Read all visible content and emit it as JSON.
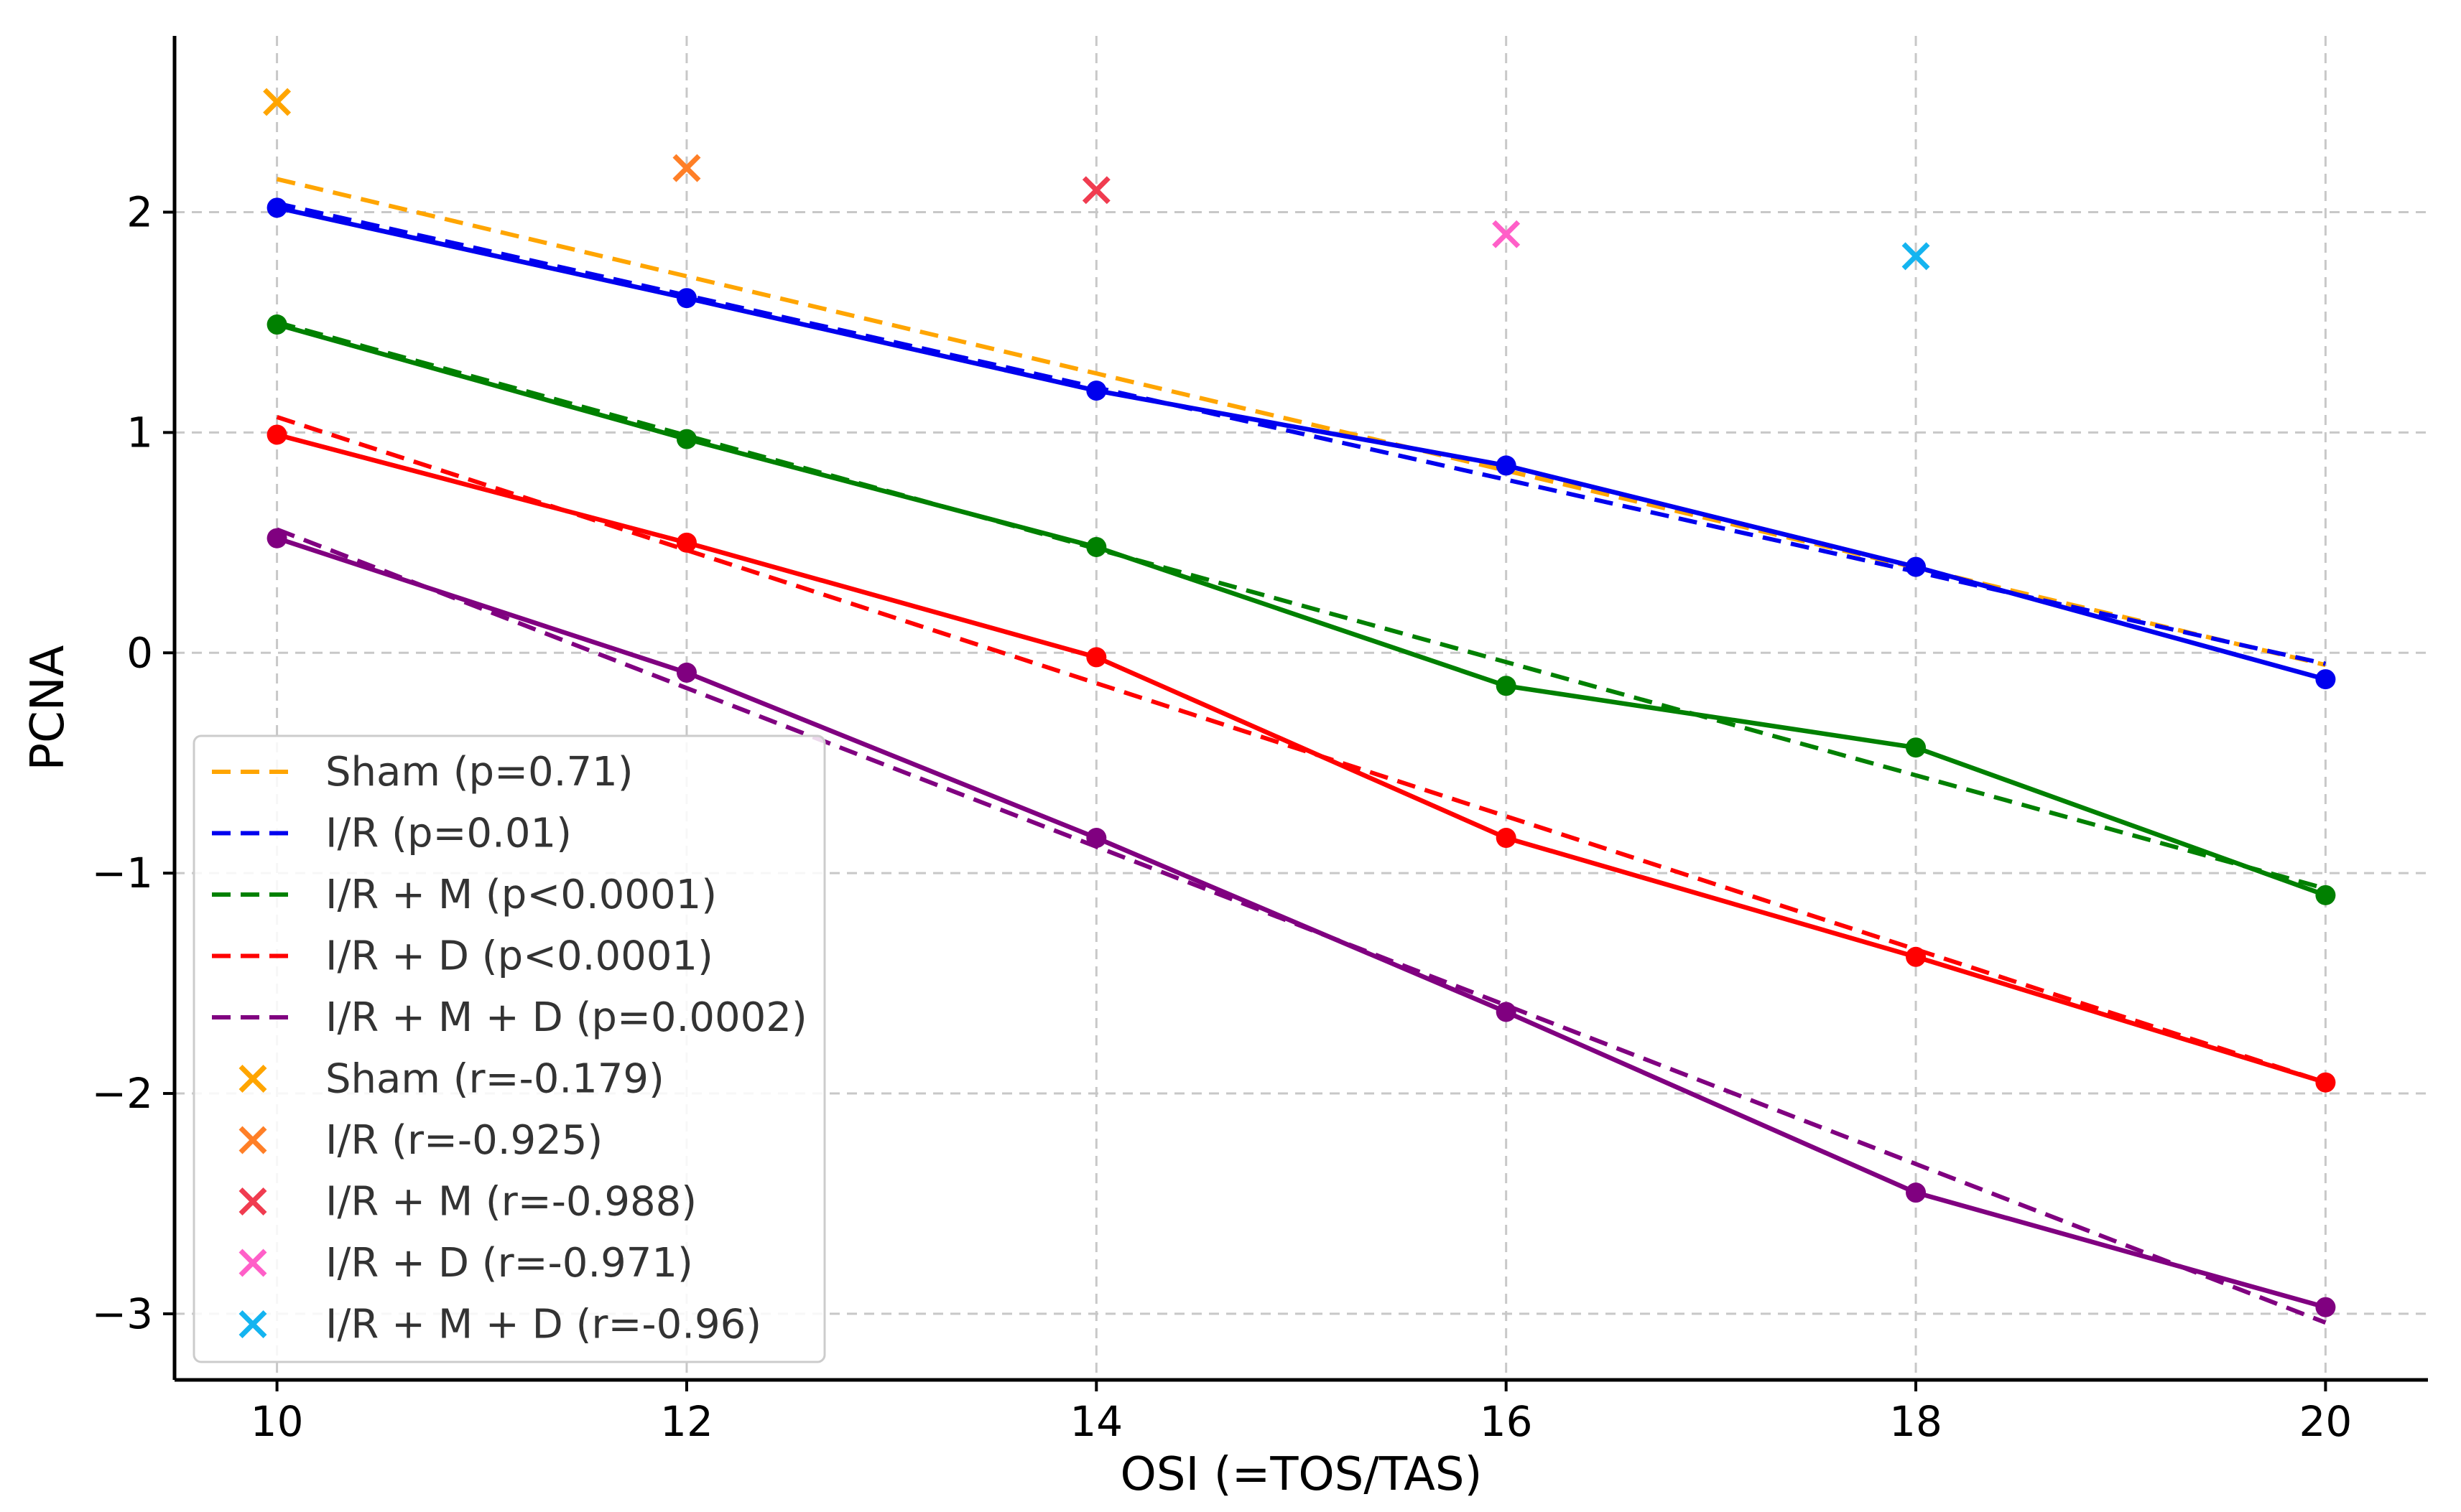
{
  "chart_data": {
    "type": "line",
    "title": "",
    "xlabel": "OSI (=TOS/TAS)",
    "ylabel": "PCNA",
    "xlim": [
      9.5,
      20.5
    ],
    "ylim": [
      -3.3,
      2.8
    ],
    "xticks": [
      10,
      12,
      14,
      16,
      18,
      20
    ],
    "yticks": [
      2,
      1,
      0,
      -1,
      -2,
      -3
    ],
    "x": [
      10,
      12,
      14,
      16,
      18,
      20
    ],
    "grid": true,
    "legend_position": "lower-left",
    "series": [
      {
        "name": "Sham",
        "color": "#FFA500",
        "values": [
          2.5,
          2.2,
          2.1,
          1.9,
          1.8,
          null
        ],
        "fit": [
          2.15,
          -0.055
        ],
        "fit_label": "Sham (p=0.71)",
        "corr_label": "Sham (r=-0.179)",
        "marker_colors": [
          "#FFA500",
          "#FF7F27",
          "#F03C50",
          "#FF5FC8",
          "#14B4F0"
        ]
      },
      {
        "name": "I/R",
        "color": "#0000EE",
        "values": [
          2.02,
          1.61,
          1.19,
          0.85,
          0.39,
          -0.12
        ],
        "fit": [
          2.04,
          -0.05
        ],
        "fit_label": "I/R (p=0.01)",
        "corr_label": "I/R (r=-0.925)"
      },
      {
        "name": "I/R + M",
        "color": "#008000",
        "values": [
          1.49,
          0.97,
          0.48,
          -0.15,
          -0.43,
          -1.1
        ],
        "fit": [
          1.5,
          -1.07
        ],
        "fit_label": "I/R + M (p<0.0001)",
        "corr_label": "I/R + M (r=-0.988)"
      },
      {
        "name": "I/R + D",
        "color": "#FF0000",
        "values": [
          0.99,
          0.5,
          -0.02,
          -0.84,
          -1.38,
          -1.95
        ],
        "fit": [
          1.07,
          -1.95
        ],
        "fit_label": "I/R + D (p<0.0001)",
        "corr_label": "I/R + D (r=-0.971)"
      },
      {
        "name": "I/R + M + D",
        "color": "#800080",
        "values": [
          0.52,
          -0.09,
          -0.84,
          -1.63,
          -2.45,
          -2.97
        ],
        "fit": [
          0.56,
          -3.04
        ],
        "fit_label": "I/R + M + D (p=0.0002)",
        "corr_label": "I/R + M + D (r=-0.96)"
      }
    ],
    "legend": {
      "entries": [
        {
          "label": "Sham (p=0.71)",
          "style": "dashed",
          "color": "#FFA500"
        },
        {
          "label": "I/R (p=0.01)",
          "style": "dashed",
          "color": "#0000EE"
        },
        {
          "label": "I/R + M (p<0.0001)",
          "style": "dashed",
          "color": "#008000"
        },
        {
          "label": "I/R + D (p<0.0001)",
          "style": "dashed",
          "color": "#FF0000"
        },
        {
          "label": "I/R + M + D (p=0.0002)",
          "style": "dashed",
          "color": "#800080"
        },
        {
          "label": "Sham (r=-0.179)",
          "style": "x",
          "color": "#FFA500"
        },
        {
          "label": "I/R (r=-0.925)",
          "style": "x",
          "color": "#FF7F27"
        },
        {
          "label": "I/R + M (r=-0.988)",
          "style": "x",
          "color": "#F03C50"
        },
        {
          "label": "I/R + D (r=-0.971)",
          "style": "x",
          "color": "#FF5FC8"
        },
        {
          "label": "I/R + M + D (r=-0.96)",
          "style": "x",
          "color": "#14B4F0"
        }
      ]
    }
  }
}
